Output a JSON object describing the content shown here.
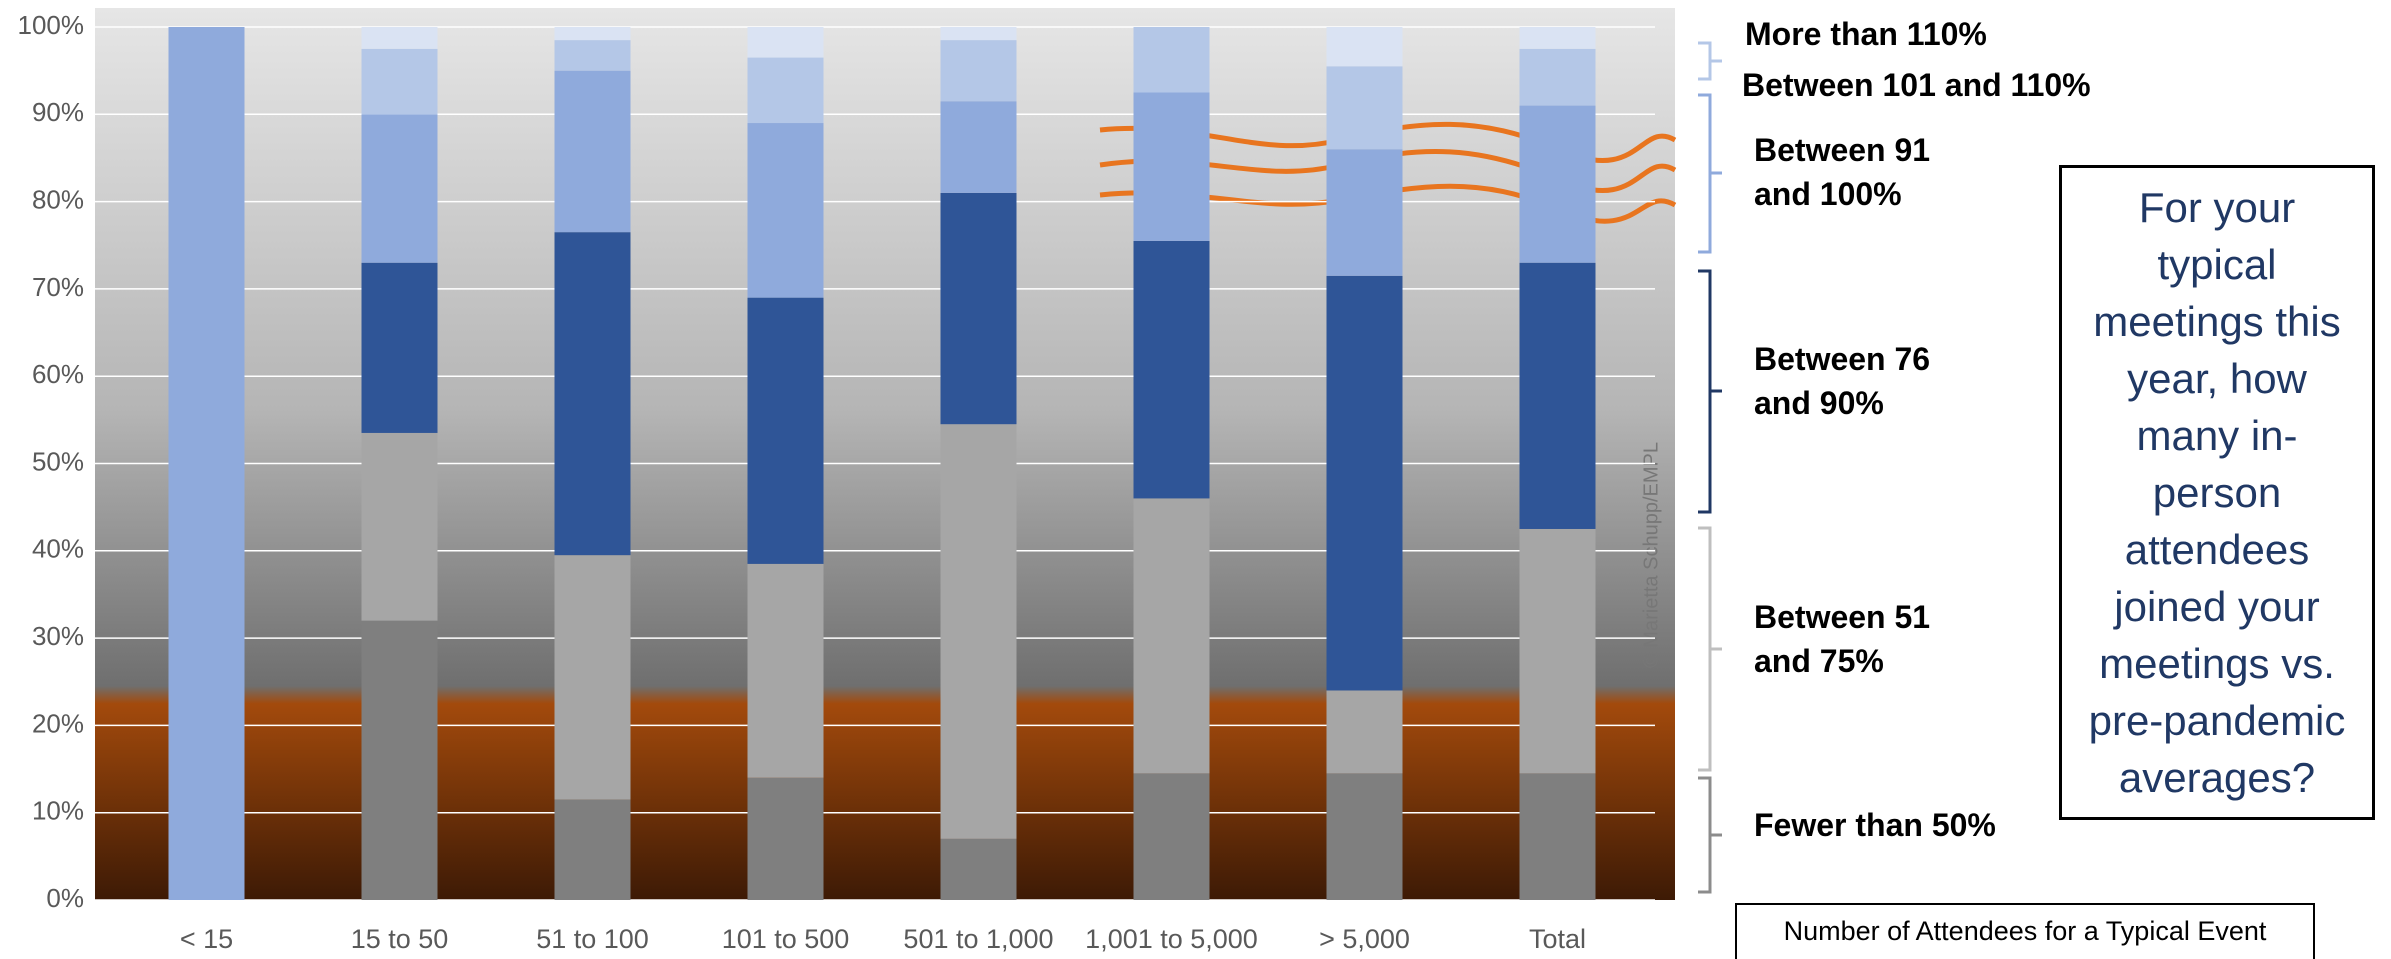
{
  "chart_data": {
    "type": "stacked_bar",
    "question": "For your typical meetings this year, how many in-person attendees joined your meetings vs. pre-pandemic averages?",
    "x_label": "Number of Attendees for a Typical Event",
    "credit": "© Marietta Schupp/EMPL",
    "categories": [
      "< 15",
      "15 to 50",
      "51 to 100",
      "101 to 500",
      "501 to 1,000",
      "1,001 to 5,000",
      "> 5,000",
      "Total"
    ],
    "series": [
      {
        "name": "Fewer than 50%",
        "color": "#7f7f7f",
        "values": [
          0,
          32,
          11.5,
          14,
          7,
          14.5,
          14.5,
          14.5
        ]
      },
      {
        "name": "Between 51 and 75%",
        "color": "#a6a6a6",
        "values": [
          0,
          21.5,
          28,
          24.5,
          47.5,
          31.5,
          9.5,
          28
        ]
      },
      {
        "name": "Between 76 and 90%",
        "color": "#2f5597",
        "values": [
          0,
          19.5,
          37,
          30.5,
          26.5,
          29.5,
          47.5,
          30.5
        ]
      },
      {
        "name": "Between 91 and 100%",
        "color": "#8faadc",
        "values": [
          100,
          17,
          18.5,
          20,
          10.5,
          17,
          14.5,
          18
        ]
      },
      {
        "name": "Between 101 and 110%",
        "color": "#b4c7e7",
        "values": [
          0,
          7.5,
          3.5,
          7.5,
          7,
          7.5,
          9.5,
          6.5
        ]
      },
      {
        "name": "More than 110%",
        "color": "#dae3f3",
        "values": [
          0,
          2.5,
          1.5,
          3.5,
          1.5,
          0,
          4.5,
          2.5
        ]
      }
    ],
    "ylim": [
      0,
      100
    ],
    "yticks": [
      {
        "value": 0,
        "label": "0%"
      },
      {
        "value": 10,
        "label": "10%"
      },
      {
        "value": 20,
        "label": "20%"
      },
      {
        "value": 30,
        "label": "30%"
      },
      {
        "value": 40,
        "label": "40%"
      },
      {
        "value": 50,
        "label": "50%"
      },
      {
        "value": 60,
        "label": "60%"
      },
      {
        "value": 70,
        "label": "70%"
      },
      {
        "value": 80,
        "label": "80%"
      },
      {
        "value": 90,
        "label": "90%"
      },
      {
        "value": 100,
        "label": "100%"
      }
    ],
    "grid": true
  }
}
